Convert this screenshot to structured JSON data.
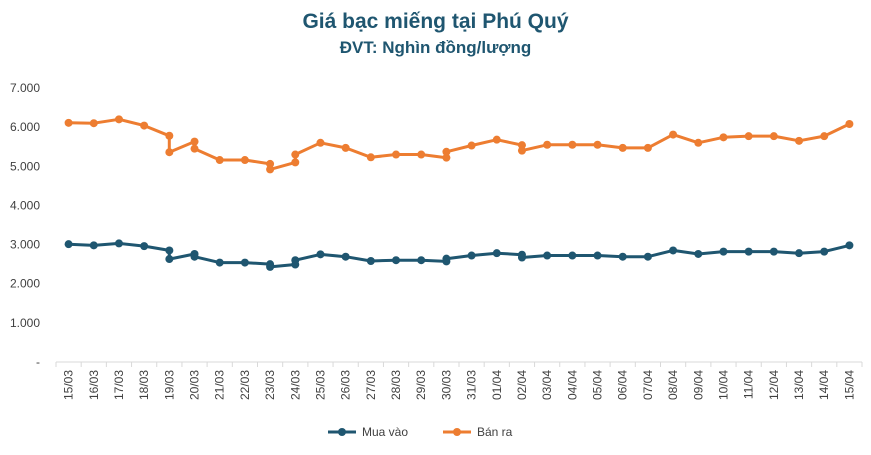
{
  "chart_data": {
    "type": "line",
    "title": "Giá bạc miếng tại Phú Quý",
    "subtitle": "ĐVT: Nghìn đồng/lượng",
    "xlabel": "",
    "ylabel": "",
    "ylim": [
      0,
      7000
    ],
    "y_ticks": [
      "-",
      "1.000",
      "2.000",
      "3.000",
      "4.000",
      "5.000",
      "6.000",
      "7.000"
    ],
    "grid": false,
    "legend_position": "bottom",
    "categories": [
      "15/03",
      "16/03",
      "17/03",
      "18/03",
      "19/03",
      "20/03",
      "21/03",
      "22/03",
      "23/03",
      "24/03",
      "25/03",
      "26/03",
      "27/03",
      "28/03",
      "29/03",
      "30/03",
      "31/03",
      "01/04",
      "02/04",
      "03/04",
      "04/04",
      "05/04",
      "06/04",
      "07/04",
      "08/04",
      "09/04",
      "10/04",
      "11/04",
      "12/04",
      "13/04",
      "14/04",
      "15/04"
    ],
    "series": [
      {
        "name": "Mua vào",
        "color": "#1f5670",
        "points": [
          [
            0,
            3010
          ],
          [
            1,
            2980
          ],
          [
            2,
            3030
          ],
          [
            3,
            2960
          ],
          [
            4,
            2850
          ],
          [
            4,
            2630
          ],
          [
            5,
            2760
          ],
          [
            5,
            2690
          ],
          [
            6,
            2540
          ],
          [
            7,
            2540
          ],
          [
            8,
            2500
          ],
          [
            8,
            2430
          ],
          [
            9,
            2490
          ],
          [
            9,
            2600
          ],
          [
            10,
            2750
          ],
          [
            11,
            2690
          ],
          [
            12,
            2580
          ],
          [
            13,
            2600
          ],
          [
            14,
            2600
          ],
          [
            15,
            2570
          ],
          [
            15,
            2640
          ],
          [
            16,
            2720
          ],
          [
            17,
            2780
          ],
          [
            18,
            2740
          ],
          [
            18,
            2670
          ],
          [
            19,
            2720
          ],
          [
            20,
            2720
          ],
          [
            21,
            2720
          ],
          [
            22,
            2690
          ],
          [
            23,
            2690
          ],
          [
            24,
            2850
          ],
          [
            25,
            2760
          ],
          [
            26,
            2820
          ],
          [
            27,
            2820
          ],
          [
            28,
            2820
          ],
          [
            29,
            2780
          ],
          [
            30,
            2820
          ],
          [
            31,
            2980
          ]
        ]
      },
      {
        "name": "Bán ra",
        "color": "#ed7d31",
        "points": [
          [
            0,
            6110
          ],
          [
            1,
            6100
          ],
          [
            2,
            6200
          ],
          [
            3,
            6040
          ],
          [
            4,
            5780
          ],
          [
            4,
            5360
          ],
          [
            5,
            5630
          ],
          [
            5,
            5450
          ],
          [
            6,
            5160
          ],
          [
            7,
            5160
          ],
          [
            8,
            5060
          ],
          [
            8,
            4920
          ],
          [
            9,
            5100
          ],
          [
            9,
            5300
          ],
          [
            10,
            5600
          ],
          [
            11,
            5470
          ],
          [
            12,
            5230
          ],
          [
            13,
            5300
          ],
          [
            14,
            5300
          ],
          [
            15,
            5220
          ],
          [
            15,
            5370
          ],
          [
            16,
            5530
          ],
          [
            17,
            5680
          ],
          [
            18,
            5540
          ],
          [
            18,
            5400
          ],
          [
            19,
            5550
          ],
          [
            20,
            5550
          ],
          [
            21,
            5550
          ],
          [
            22,
            5470
          ],
          [
            23,
            5470
          ],
          [
            24,
            5810
          ],
          [
            25,
            5600
          ],
          [
            26,
            5740
          ],
          [
            27,
            5770
          ],
          [
            28,
            5770
          ],
          [
            29,
            5650
          ],
          [
            30,
            5770
          ],
          [
            31,
            6080
          ]
        ]
      }
    ]
  }
}
